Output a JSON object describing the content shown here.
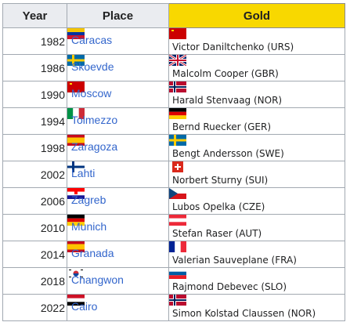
{
  "headers": {
    "year": "Year",
    "place": "Place",
    "gold": "Gold"
  },
  "rows": [
    {
      "year": "1982",
      "place": "Caracas",
      "place_flag": "flag-venezuela-icon",
      "gold": "Victor Daniltchenko (URS)",
      "gold_flag": "flag-ussr-icon"
    },
    {
      "year": "1986",
      "place": "Skoevde",
      "place_flag": "flag-sweden-icon",
      "gold": "Malcolm Cooper (GBR)",
      "gold_flag": "flag-uk-icon"
    },
    {
      "year": "1990",
      "place": "Moscow",
      "place_flag": "flag-ussr-icon",
      "gold": "Harald Stenvaag (NOR)",
      "gold_flag": "flag-norway-icon"
    },
    {
      "year": "1994",
      "place": "Tolmezzo",
      "place_flag": "flag-italy-icon",
      "gold": "Bernd Ruecker (GER)",
      "gold_flag": "flag-germany-icon"
    },
    {
      "year": "1998",
      "place": "Zaragoza",
      "place_flag": "flag-spain-icon",
      "gold": "Bengt Andersson (SWE)",
      "gold_flag": "flag-sweden-icon"
    },
    {
      "year": "2002",
      "place": "Lahti",
      "place_flag": "flag-finland-icon",
      "gold": "Norbert Sturny (SUI)",
      "gold_flag": "flag-switzerland-icon"
    },
    {
      "year": "2006",
      "place": "Zagreb",
      "place_flag": "flag-croatia-icon",
      "gold": "Lubos Opelka (CZE)",
      "gold_flag": "flag-czech-icon"
    },
    {
      "year": "2010",
      "place": "Munich",
      "place_flag": "flag-germany-icon",
      "gold": "Stefan Raser (AUT)",
      "gold_flag": "flag-austria-icon"
    },
    {
      "year": "2014",
      "place": "Granada",
      "place_flag": "flag-spain-icon",
      "gold": "Valerian Sauveplane (FRA)",
      "gold_flag": "flag-france-icon"
    },
    {
      "year": "2018",
      "place": "Changwon",
      "place_flag": "flag-south-korea-icon",
      "gold": "Rajmond Debevec (SLO)",
      "gold_flag": "flag-slovenia-icon"
    },
    {
      "year": "2022",
      "place": "Cairo",
      "place_flag": "flag-egypt-icon",
      "gold": "Simon Kolstad Claussen (NOR)",
      "gold_flag": "flag-norway-icon"
    }
  ],
  "colors": {
    "link": "#3366cc",
    "gold_header": "#f8d800",
    "header_bg": "#eaecf0",
    "border": "#a2a9b1"
  }
}
